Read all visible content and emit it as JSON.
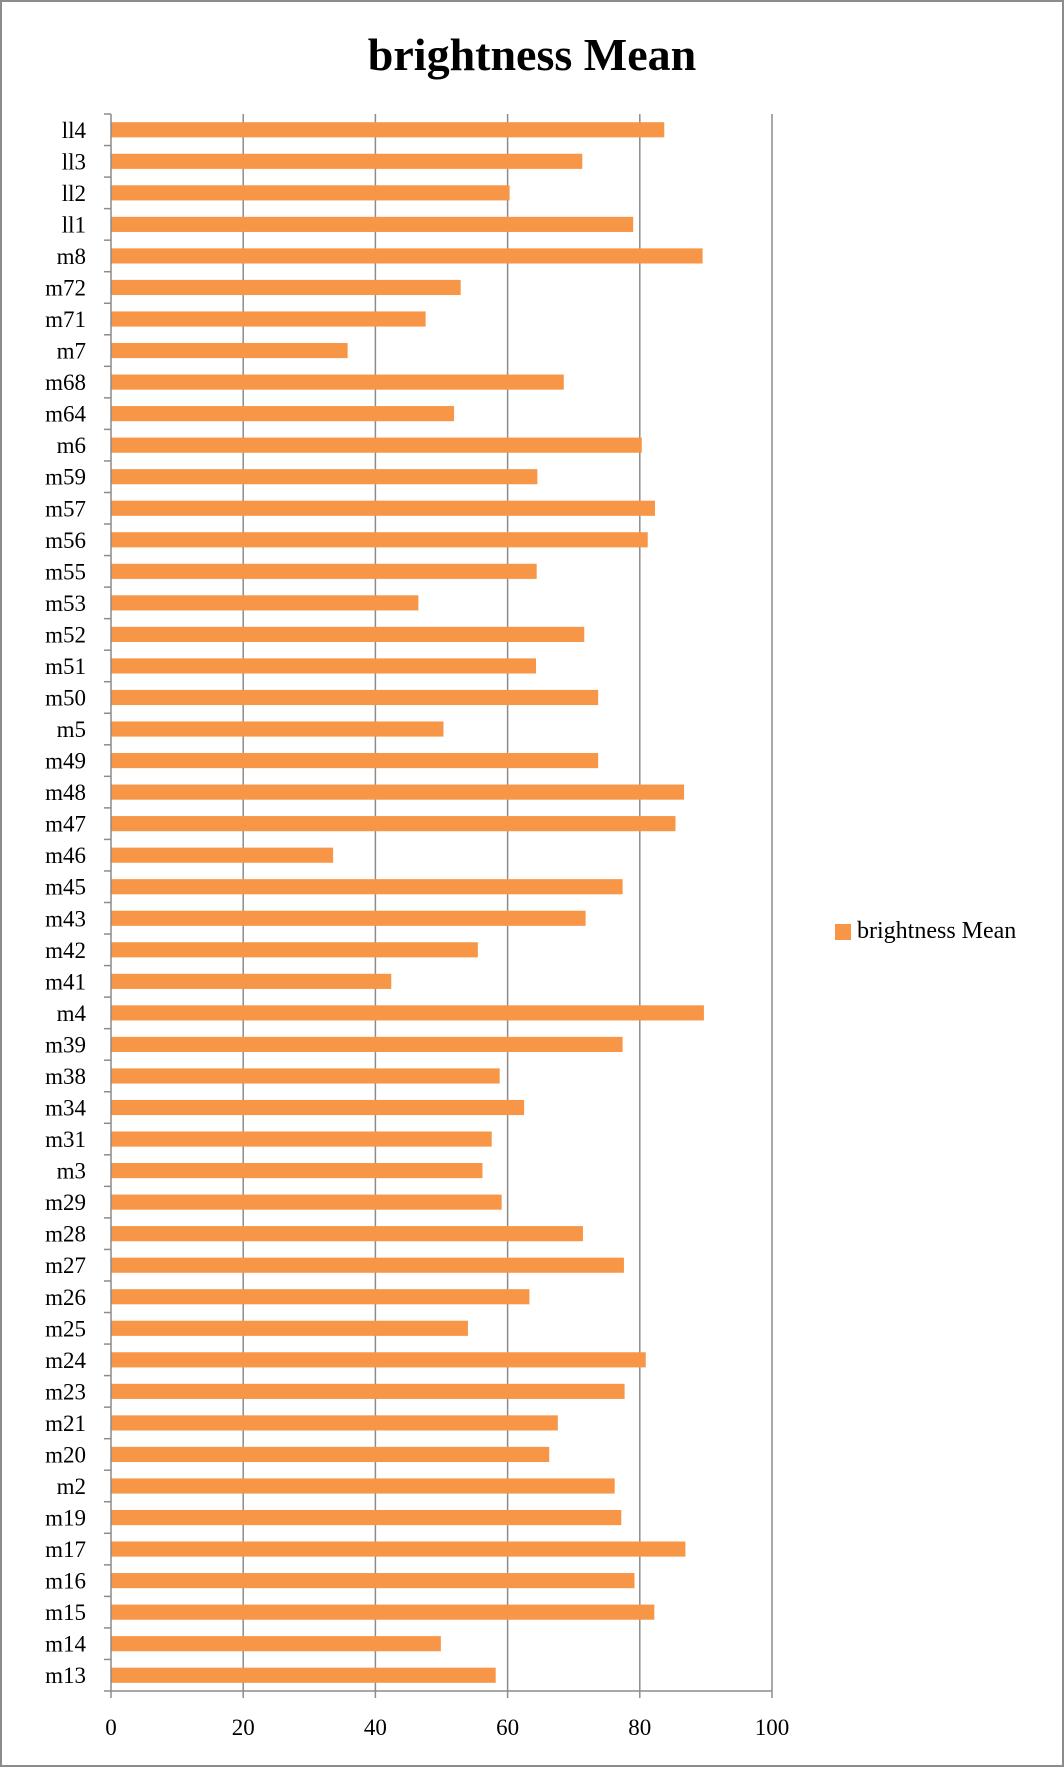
{
  "chart_data": {
    "type": "bar",
    "orientation": "horizontal",
    "title": "brightness Mean",
    "xlabel": "",
    "ylabel": "",
    "xlim": [
      0,
      100
    ],
    "x_ticks": [
      0,
      20,
      40,
      60,
      80,
      100
    ],
    "grid": true,
    "legend_position": "right",
    "categories": [
      "ll4",
      "ll3",
      "ll2",
      "ll1",
      "m8",
      "m72",
      "m71",
      "m7",
      "m68",
      "m64",
      "m6",
      "m59",
      "m57",
      "m56",
      "m55",
      "m53",
      "m52",
      "m51",
      "m50",
      "m5",
      "m49",
      "m48",
      "m47",
      "m46",
      "m45",
      "m43",
      "m42",
      "m41",
      "m4",
      "m39",
      "m38",
      "m34",
      "m31",
      "m3",
      "m29",
      "m28",
      "m27",
      "m26",
      "m25",
      "m24",
      "m23",
      "m21",
      "m20",
      "m2",
      "m19",
      "m17",
      "m16",
      "m15",
      "m14",
      "m13"
    ],
    "series": [
      {
        "name": "brightness Mean",
        "color": "#f79646",
        "values": [
          83.7,
          71.3,
          60.3,
          79,
          89.5,
          52.9,
          47.6,
          35.8,
          68.5,
          51.9,
          80.3,
          64.5,
          82.3,
          81.2,
          64.4,
          46.5,
          71.6,
          64.3,
          73.7,
          50.3,
          73.7,
          86.7,
          85.4,
          33.6,
          77.4,
          71.8,
          55.5,
          42.4,
          89.7,
          77.4,
          58.8,
          62.5,
          57.6,
          56.2,
          59.1,
          71.4,
          77.6,
          63.3,
          54,
          80.9,
          77.7,
          67.6,
          66.3,
          76.2,
          77.2,
          86.9,
          79.2,
          82.2,
          49.9,
          58.2
        ]
      }
    ]
  }
}
